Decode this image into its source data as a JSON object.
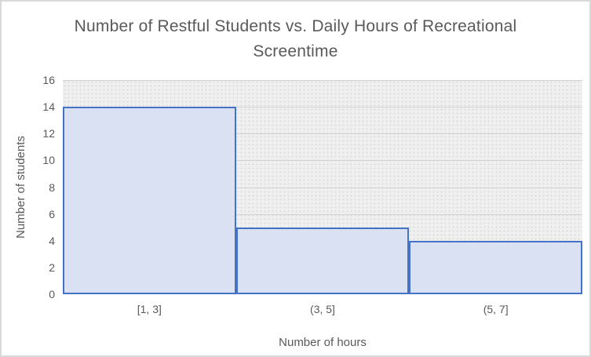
{
  "chart_data": {
    "type": "bar",
    "subtype": "histogram",
    "title": "Number of Restful Students vs. Daily Hours of Recreational Screentime",
    "categories": [
      "[1, 3]",
      "(3, 5]",
      "(5, 7]"
    ],
    "values": [
      14,
      5,
      4
    ],
    "xlabel": "Number of hours",
    "ylabel": "Number of students",
    "ylim": [
      0,
      16
    ],
    "yticks": [
      0,
      2,
      4,
      6,
      8,
      10,
      12,
      14,
      16
    ],
    "grid": true,
    "legend": "none",
    "colors": {
      "bar_fill": "#dae1f3",
      "bar_border": "#4472c4",
      "text": "#595959",
      "plot_background": "#efefef",
      "gridline": "#d2d2d2",
      "chart_border": "#d9d9d9"
    }
  }
}
